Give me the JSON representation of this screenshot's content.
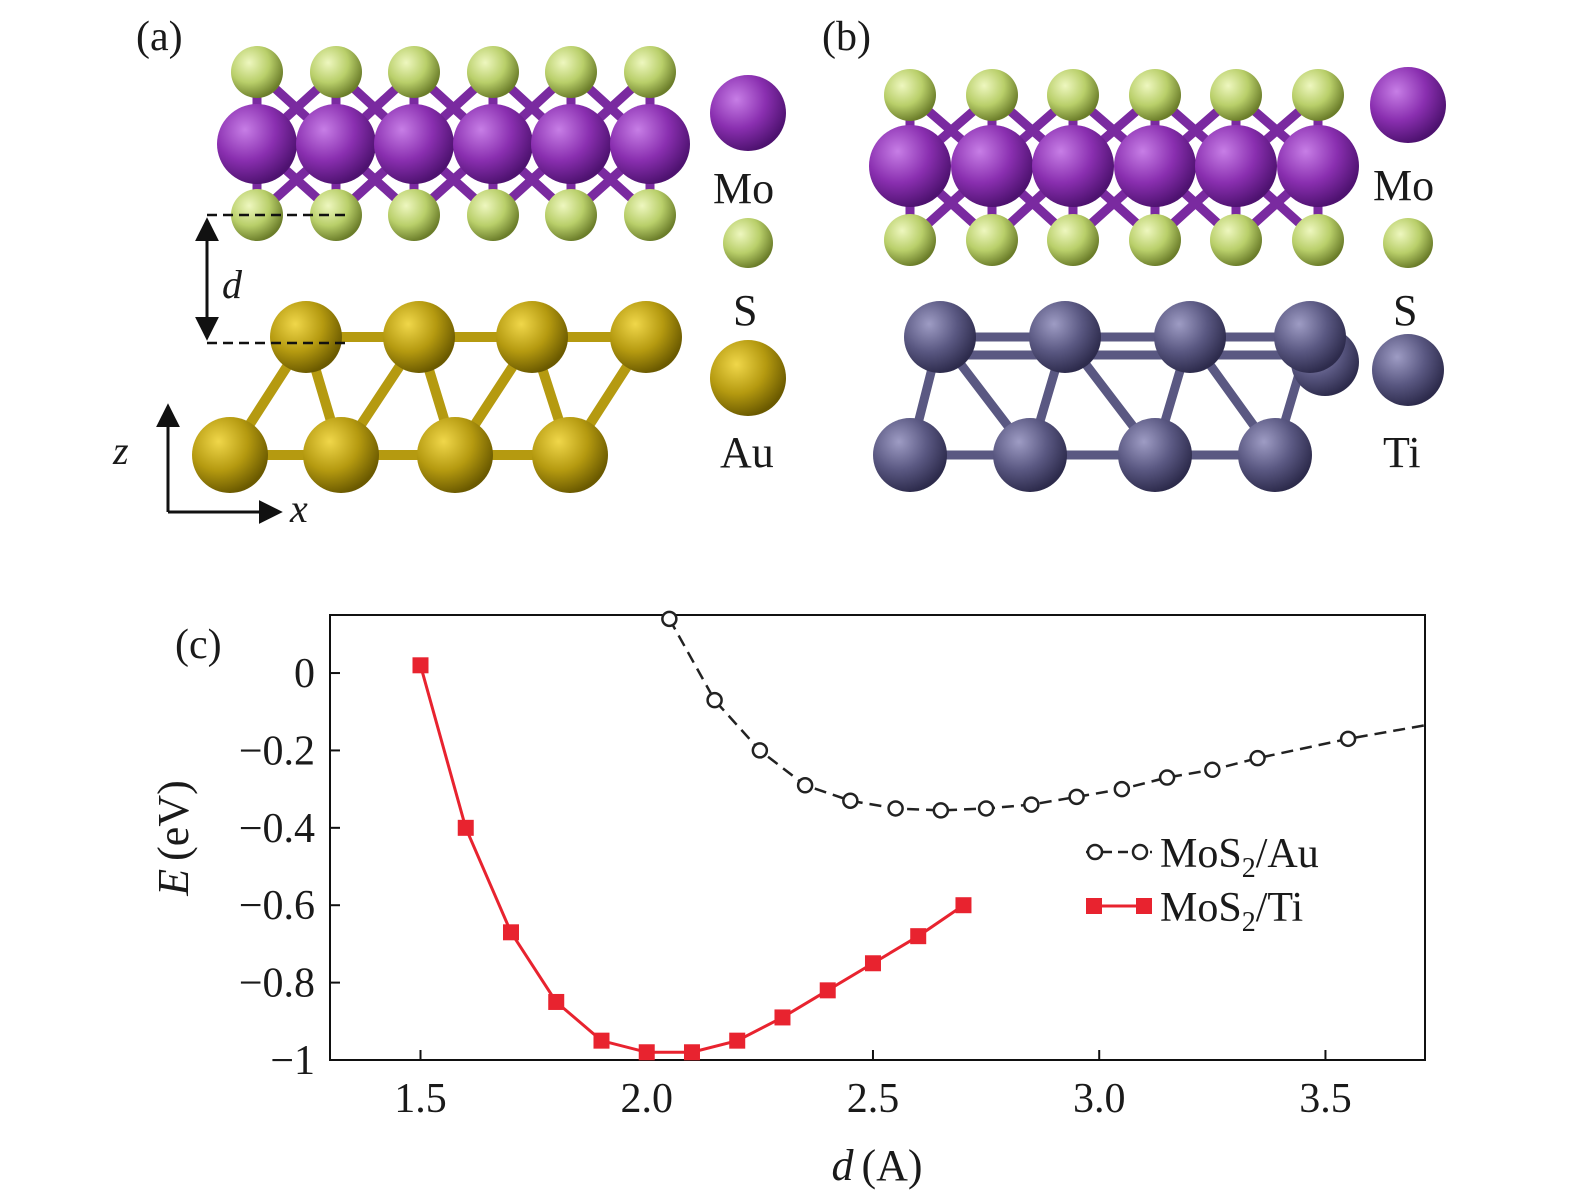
{
  "panels": {
    "a": {
      "label": "(a)",
      "distance_label": "d",
      "axis_z": "z",
      "axis_x": "x",
      "legend": [
        "Mo",
        "S",
        "Au"
      ]
    },
    "b": {
      "label": "(b)",
      "legend": [
        "Mo",
        "S",
        "Ti"
      ]
    },
    "c": {
      "label": "(c)"
    }
  },
  "colors": {
    "mo": "#8a2fb0",
    "s": "#b9cf6a",
    "au": "#b59a10",
    "ti": "#5a5882",
    "series_au": "#222222",
    "series_ti": "#e8232f"
  },
  "chart_data": {
    "type": "line",
    "xlabel": {
      "var": "d",
      "unit": "(A)"
    },
    "ylabel": {
      "var": "E",
      "unit": "(eV)"
    },
    "xlim": [
      1.3,
      3.72
    ],
    "ylim": [
      -1,
      0.15
    ],
    "xticks": [
      1.5,
      2.0,
      2.5,
      3.0,
      3.5
    ],
    "xtick_labels": [
      "1.5",
      "2.0",
      "2.5",
      "3.0",
      "3.5"
    ],
    "yticks": [
      0,
      -0.2,
      -0.4,
      -0.6,
      -0.8,
      -1
    ],
    "ytick_labels": [
      "0",
      "−0.2",
      "−0.4",
      "−0.6",
      "−0.8",
      "−1"
    ],
    "series": [
      {
        "name": "MoS₂/Au",
        "name_main": "MoS",
        "name_sub": "2",
        "name_tail": "/Au",
        "marker": "open-circle",
        "line": "dashed",
        "x": [
          2.05,
          2.15,
          2.25,
          2.35,
          2.45,
          2.55,
          2.65,
          2.75,
          2.85,
          2.95,
          3.05,
          3.15,
          3.25,
          3.35,
          3.55
        ],
        "y": [
          0.14,
          -0.07,
          -0.2,
          -0.29,
          -0.33,
          -0.35,
          -0.355,
          -0.35,
          -0.34,
          -0.32,
          -0.3,
          -0.27,
          -0.25,
          -0.22,
          -0.17
        ],
        "line_end": [
          3.72,
          -0.135
        ]
      },
      {
        "name": "MoS₂/Ti",
        "name_main": "MoS",
        "name_sub": "2",
        "name_tail": "/Ti",
        "marker": "filled-square",
        "line": "solid",
        "x": [
          1.5,
          1.6,
          1.7,
          1.8,
          1.9,
          2.0,
          2.1,
          2.2,
          2.3,
          2.4,
          2.5,
          2.6,
          2.7
        ],
        "y": [
          0.02,
          -0.4,
          -0.67,
          -0.85,
          -0.95,
          -0.98,
          -0.98,
          -0.95,
          -0.89,
          -0.82,
          -0.75,
          -0.68,
          -0.6
        ]
      }
    ]
  }
}
